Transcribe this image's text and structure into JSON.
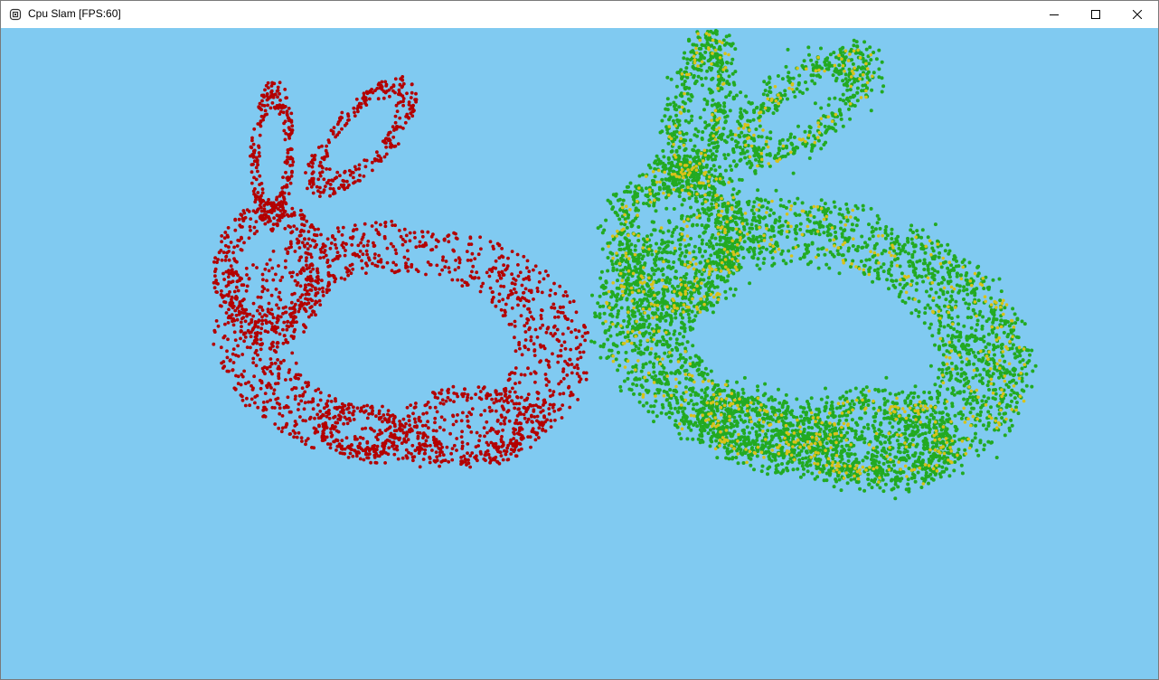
{
  "window": {
    "title": "Cpu Slam [FPS:60]",
    "icon": "app-icon",
    "controls": [
      "minimize-icon",
      "maximize-icon",
      "close-icon"
    ]
  },
  "viewport": {
    "background": "#80caf1",
    "clouds": [
      {
        "name": "reference-cloud",
        "color": "#b30000",
        "shape": "bunny"
      },
      {
        "name": "scan-cloud",
        "color": "#22aa22",
        "shape": "bunny-noisy"
      },
      {
        "name": "matched-points",
        "color": "#d8c21a",
        "shape": "bunny-noisy"
      }
    ]
  }
}
